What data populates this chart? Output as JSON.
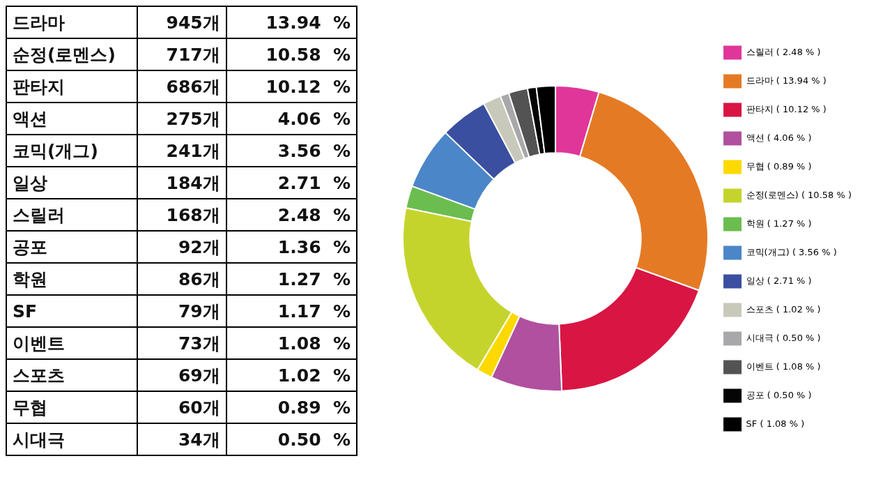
{
  "chart_data": [
    {
      "type": "other",
      "categories": [
        "드라마",
        "순정(로멘스)",
        "판타지",
        "액션",
        "코믹(개그)",
        "일상",
        "스릴러",
        "공포",
        "학원",
        "SF",
        "이벤트",
        "스포츠",
        "무협",
        "시대극"
      ],
      "series": [
        {
          "values": [
            945,
            717,
            686,
            275,
            241,
            184,
            168,
            92,
            86,
            79,
            73,
            69,
            60,
            34
          ],
          "value_labels": [
            "945개",
            "717개",
            "686개",
            "275개",
            "241개",
            "184개",
            "168개",
            "92개",
            "86개",
            "79개",
            "73개",
            "69개",
            "60개",
            "34개"
          ]
        },
        {
          "values": [
            13.94,
            10.58,
            10.12,
            4.06,
            3.56,
            2.71,
            2.48,
            1.36,
            1.27,
            1.17,
            1.08,
            1.02,
            0.89,
            0.5
          ],
          "value_labels": [
            "13.94  %",
            "10.58  %",
            "10.12  %",
            "4.06  %",
            "3.56  %",
            "2.71  %",
            "2.48  %",
            "1.36  %",
            "1.27  %",
            "1.17  %",
            "1.08  %",
            "1.02  %",
            "0.89  %",
            "0.50  %"
          ]
        }
      ]
    },
    {
      "type": "donut",
      "categories": [
        "스릴러",
        "드라마",
        "판타지",
        "액션",
        "무협",
        "순정(로멘스)",
        "학원",
        "코믹(개그)",
        "일상",
        "스포츠",
        "시대극",
        "이벤트",
        "공포",
        "SF"
      ],
      "values": [
        2.48,
        13.94,
        10.12,
        4.06,
        0.89,
        10.58,
        1.27,
        3.56,
        2.71,
        1.02,
        0.5,
        1.08,
        0.5,
        1.08
      ],
      "value_labels": [
        "( 2.48 % )",
        "( 13.94 % )",
        "( 10.12 % )",
        "( 4.06 % )",
        "( 0.89 % )",
        "( 10.58 % )",
        "( 1.27 % )",
        "( 3.56 % )",
        "( 2.71 % )",
        "( 1.02 % )",
        "( 0.50 % )",
        "( 1.08 % )",
        "( 0.50 % )",
        "( 1.08 % )"
      ],
      "colors": [
        "#e0369a",
        "#e57a25",
        "#d81543",
        "#b0509e",
        "#fdd900",
        "#c5d42c",
        "#6bbd4f",
        "#4b86c8",
        "#3a4fa0",
        "#c8c9bb",
        "#a8a8ab",
        "#535353",
        "#050505",
        "#000000"
      ],
      "legend": "right"
    }
  ]
}
